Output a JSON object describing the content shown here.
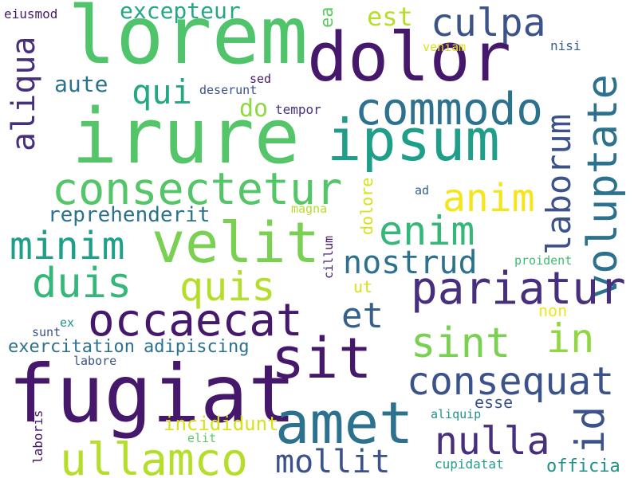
{
  "palette": {
    "dark_purple": "#46186b",
    "deep_indigo": "#472f7d",
    "slate_blue": "#3b528b",
    "steel_blue": "#355f8d",
    "teal": "#2c728e",
    "sea_green": "#21918c",
    "emerald": "#1f9e89",
    "green": "#35b779",
    "light_green": "#54c568",
    "lime": "#90d743",
    "yellow_green": "#b5de2b",
    "yellow": "#f3e51e"
  },
  "words": [
    {
      "text": "lorem",
      "color": "#4fc46a"
    },
    {
      "text": "dolor",
      "color": "#46186b"
    },
    {
      "text": "irure",
      "color": "#54c568"
    },
    {
      "text": "ipsum",
      "color": "#1f9e89"
    },
    {
      "text": "culpa",
      "color": "#3b528b"
    },
    {
      "text": "excepteur",
      "color": "#26a784"
    },
    {
      "text": "est",
      "color": "#b5de2b"
    },
    {
      "text": "ea",
      "color": "#5ec962"
    },
    {
      "text": "eiusmod",
      "color": "#46186b"
    },
    {
      "text": "aliqua",
      "color": "#472f7d"
    },
    {
      "text": "qui",
      "color": "#26a784"
    },
    {
      "text": "aute",
      "color": "#2c728e"
    },
    {
      "text": "sed",
      "color": "#46186b"
    },
    {
      "text": "deserunt",
      "color": "#3b528b"
    },
    {
      "text": "do",
      "color": "#90d743"
    },
    {
      "text": "tempor",
      "color": "#472f7d"
    },
    {
      "text": "veniam",
      "color": "#d8e219"
    },
    {
      "text": "nisi",
      "color": "#355f8d"
    },
    {
      "text": "commodo",
      "color": "#2c728e"
    },
    {
      "text": "voluptate",
      "color": "#2c728e"
    },
    {
      "text": "laborum",
      "color": "#3b528b"
    },
    {
      "text": "consectetur",
      "color": "#54c568"
    },
    {
      "text": "anim",
      "color": "#f3e51e"
    },
    {
      "text": "reprehenderit",
      "color": "#2c728e"
    },
    {
      "text": "magna",
      "color": "#b5de2b"
    },
    {
      "text": "ad",
      "color": "#355f8d"
    },
    {
      "text": "minim",
      "color": "#1f9e89"
    },
    {
      "text": "velit",
      "color": "#7ad151"
    },
    {
      "text": "enim",
      "color": "#35b779"
    },
    {
      "text": "nostrud",
      "color": "#2c728e"
    },
    {
      "text": "cillum",
      "color": "#46186b"
    },
    {
      "text": "dolore",
      "color": "#d8e219"
    },
    {
      "text": "proident",
      "color": "#3fbc73"
    },
    {
      "text": "duis",
      "color": "#35b779"
    },
    {
      "text": "quis",
      "color": "#b5de2b"
    },
    {
      "text": "pariatur",
      "color": "#472f7d"
    },
    {
      "text": "ut",
      "color": "#d8e219"
    },
    {
      "text": "occaecat",
      "color": "#46186b"
    },
    {
      "text": "et",
      "color": "#355f8d"
    },
    {
      "text": "non",
      "color": "#f3e51e"
    },
    {
      "text": "in",
      "color": "#90d743"
    },
    {
      "text": "sint",
      "color": "#7ad151"
    },
    {
      "text": "ex",
      "color": "#21918c"
    },
    {
      "text": "sunt",
      "color": "#3b528b"
    },
    {
      "text": "exercitation",
      "color": "#2c728e"
    },
    {
      "text": "adipiscing",
      "color": "#2c728e"
    },
    {
      "text": "labore",
      "color": "#3b528b"
    },
    {
      "text": "sit",
      "color": "#46186b"
    },
    {
      "text": "consequat",
      "color": "#3b528b"
    },
    {
      "text": "fugiat",
      "color": "#46186b"
    },
    {
      "text": "amet",
      "color": "#2c728e"
    },
    {
      "text": "laboris",
      "color": "#46186b"
    },
    {
      "text": "esse",
      "color": "#3b528b"
    },
    {
      "text": "incididunt",
      "color": "#d8e219"
    },
    {
      "text": "aliquip",
      "color": "#21918c"
    },
    {
      "text": "id",
      "color": "#3b528b"
    },
    {
      "text": "elit",
      "color": "#5ec962"
    },
    {
      "text": "nulla",
      "color": "#472f7d"
    },
    {
      "text": "ullamco",
      "color": "#b5de2b"
    },
    {
      "text": "mollit",
      "color": "#3b528b"
    },
    {
      "text": "cupidatat",
      "color": "#1f9e89"
    },
    {
      "text": "officia",
      "color": "#21918c"
    }
  ]
}
